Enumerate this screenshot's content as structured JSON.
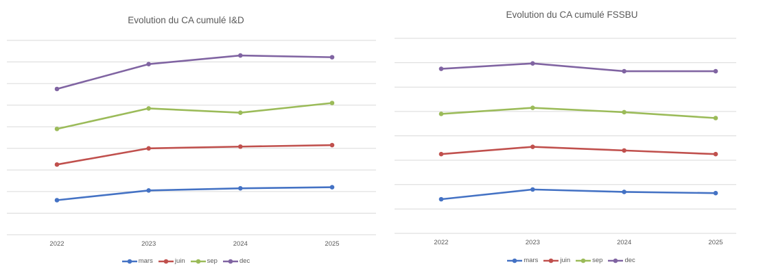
{
  "chart_data": [
    {
      "type": "line",
      "title": "Evolution du CA cumulé I&D",
      "categories": [
        "2022",
        "2023",
        "2024",
        "2025"
      ],
      "series": [
        {
          "name": "mars",
          "color": "#4472C4",
          "values": [
            1.6,
            2.05,
            2.15,
            2.2
          ]
        },
        {
          "name": "juin",
          "color": "#C0504D",
          "values": [
            3.25,
            4.0,
            4.08,
            4.15
          ]
        },
        {
          "name": "sep",
          "color": "#9BBB59",
          "values": [
            4.9,
            5.85,
            5.65,
            6.1
          ]
        },
        {
          "name": "dec",
          "color": "#8064A2",
          "values": [
            6.75,
            7.9,
            8.3,
            8.22
          ]
        }
      ],
      "ylim": [
        0,
        9
      ],
      "grid": true,
      "legend": "bottom"
    },
    {
      "type": "line",
      "title": "Evolution du CA cumulé FSSBU",
      "categories": [
        "2022",
        "2023",
        "2024",
        "2025"
      ],
      "series": [
        {
          "name": "mars",
          "color": "#4472C4",
          "values": [
            1.4,
            1.8,
            1.7,
            1.65
          ]
        },
        {
          "name": "juin",
          "color": "#C0504D",
          "values": [
            3.25,
            3.55,
            3.4,
            3.25
          ]
        },
        {
          "name": "sep",
          "color": "#9BBB59",
          "values": [
            4.9,
            5.15,
            4.97,
            4.73
          ]
        },
        {
          "name": "dec",
          "color": "#8064A2",
          "values": [
            6.75,
            6.97,
            6.65,
            6.65
          ]
        }
      ],
      "ylim": [
        0,
        8
      ],
      "grid": true,
      "legend": "bottom"
    }
  ]
}
